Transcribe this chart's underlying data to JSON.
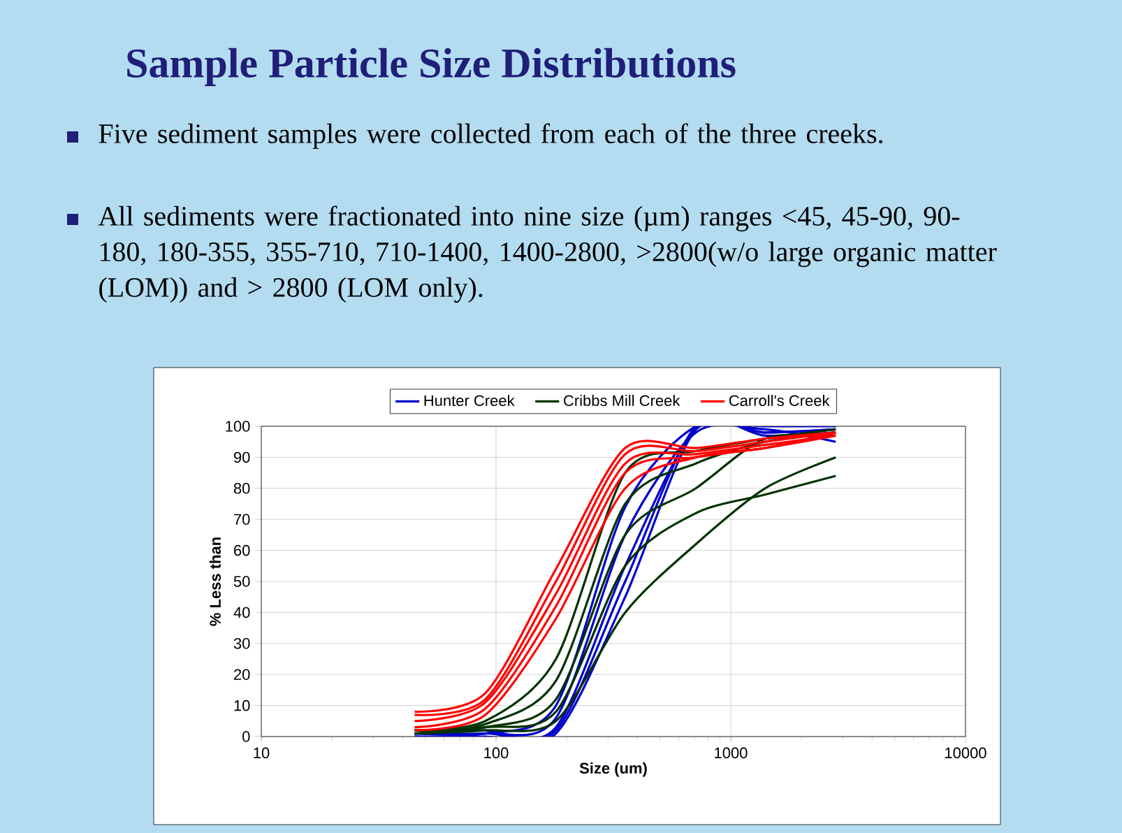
{
  "chart_data": {
    "type": "line",
    "title": "Sample Particle Size Distributions",
    "annotations": [
      "Five sediment samples were collected from each of the three creeks.",
      "All sediments were fractionated into nine size (µm) ranges <45, 45-90, 90-180, 180-355, 355-710, 710-1400, 1400-2800, >2800(w/o large organic matter (LOM)) and > 2800 (LOM only)."
    ],
    "xlabel": "Size (um)",
    "ylabel": "% Less than",
    "x": [
      45,
      90,
      180,
      355,
      710,
      1400,
      2800
    ],
    "log": "x",
    "xlim": [
      10,
      10000
    ],
    "xticks": [
      10,
      100,
      1000,
      10000
    ],
    "ylim": [
      0,
      100
    ],
    "yticks": [
      0,
      10,
      20,
      30,
      40,
      50,
      60,
      70,
      80,
      90,
      100
    ],
    "grid": true,
    "legend": "top",
    "series": [
      {
        "name": "Hunter Creek",
        "color": "#0000cc",
        "values": [
          0,
          1,
          10,
          74,
          100,
          100,
          100
        ]
      },
      {
        "color": "#0000cc",
        "values": [
          1,
          1,
          6,
          65,
          98,
          99,
          95
        ]
      },
      {
        "color": "#0000cc",
        "values": [
          1,
          1,
          3,
          55,
          99,
          98,
          99
        ]
      },
      {
        "color": "#0000cc",
        "values": [
          2,
          2,
          2,
          50,
          100,
          97,
          98
        ]
      },
      {
        "color": "#0000cc",
        "values": [
          0,
          0,
          1,
          45,
          99,
          98,
          99
        ]
      },
      {
        "name": "Cribbs Mill Creek",
        "color": "#003300",
        "values": [
          2,
          5,
          25,
          85,
          92,
          96,
          99
        ]
      },
      {
        "color": "#003300",
        "values": [
          1,
          4,
          18,
          75,
          88,
          95,
          98
        ]
      },
      {
        "color": "#003300",
        "values": [
          2,
          3,
          12,
          65,
          80,
          96,
          97
        ]
      },
      {
        "color": "#003300",
        "values": [
          1,
          3,
          8,
          55,
          72,
          78,
          84
        ]
      },
      {
        "color": "#003300",
        "values": [
          1,
          2,
          5,
          40,
          62,
          80,
          90
        ]
      },
      {
        "name": "Carroll's Creek",
        "color": "#ff0000",
        "values": [
          8,
          14,
          54,
          93,
          93,
          96,
          98
        ]
      },
      {
        "color": "#ff0000",
        "values": [
          7,
          12,
          50,
          91,
          92,
          95,
          98
        ]
      },
      {
        "color": "#ff0000",
        "values": [
          5,
          11,
          46,
          88,
          91,
          94,
          97
        ]
      },
      {
        "color": "#ff0000",
        "values": [
          3,
          9,
          42,
          85,
          90,
          93,
          97
        ]
      },
      {
        "color": "#ff0000",
        "values": [
          2,
          7,
          38,
          80,
          90,
          93,
          98
        ]
      }
    ]
  }
}
